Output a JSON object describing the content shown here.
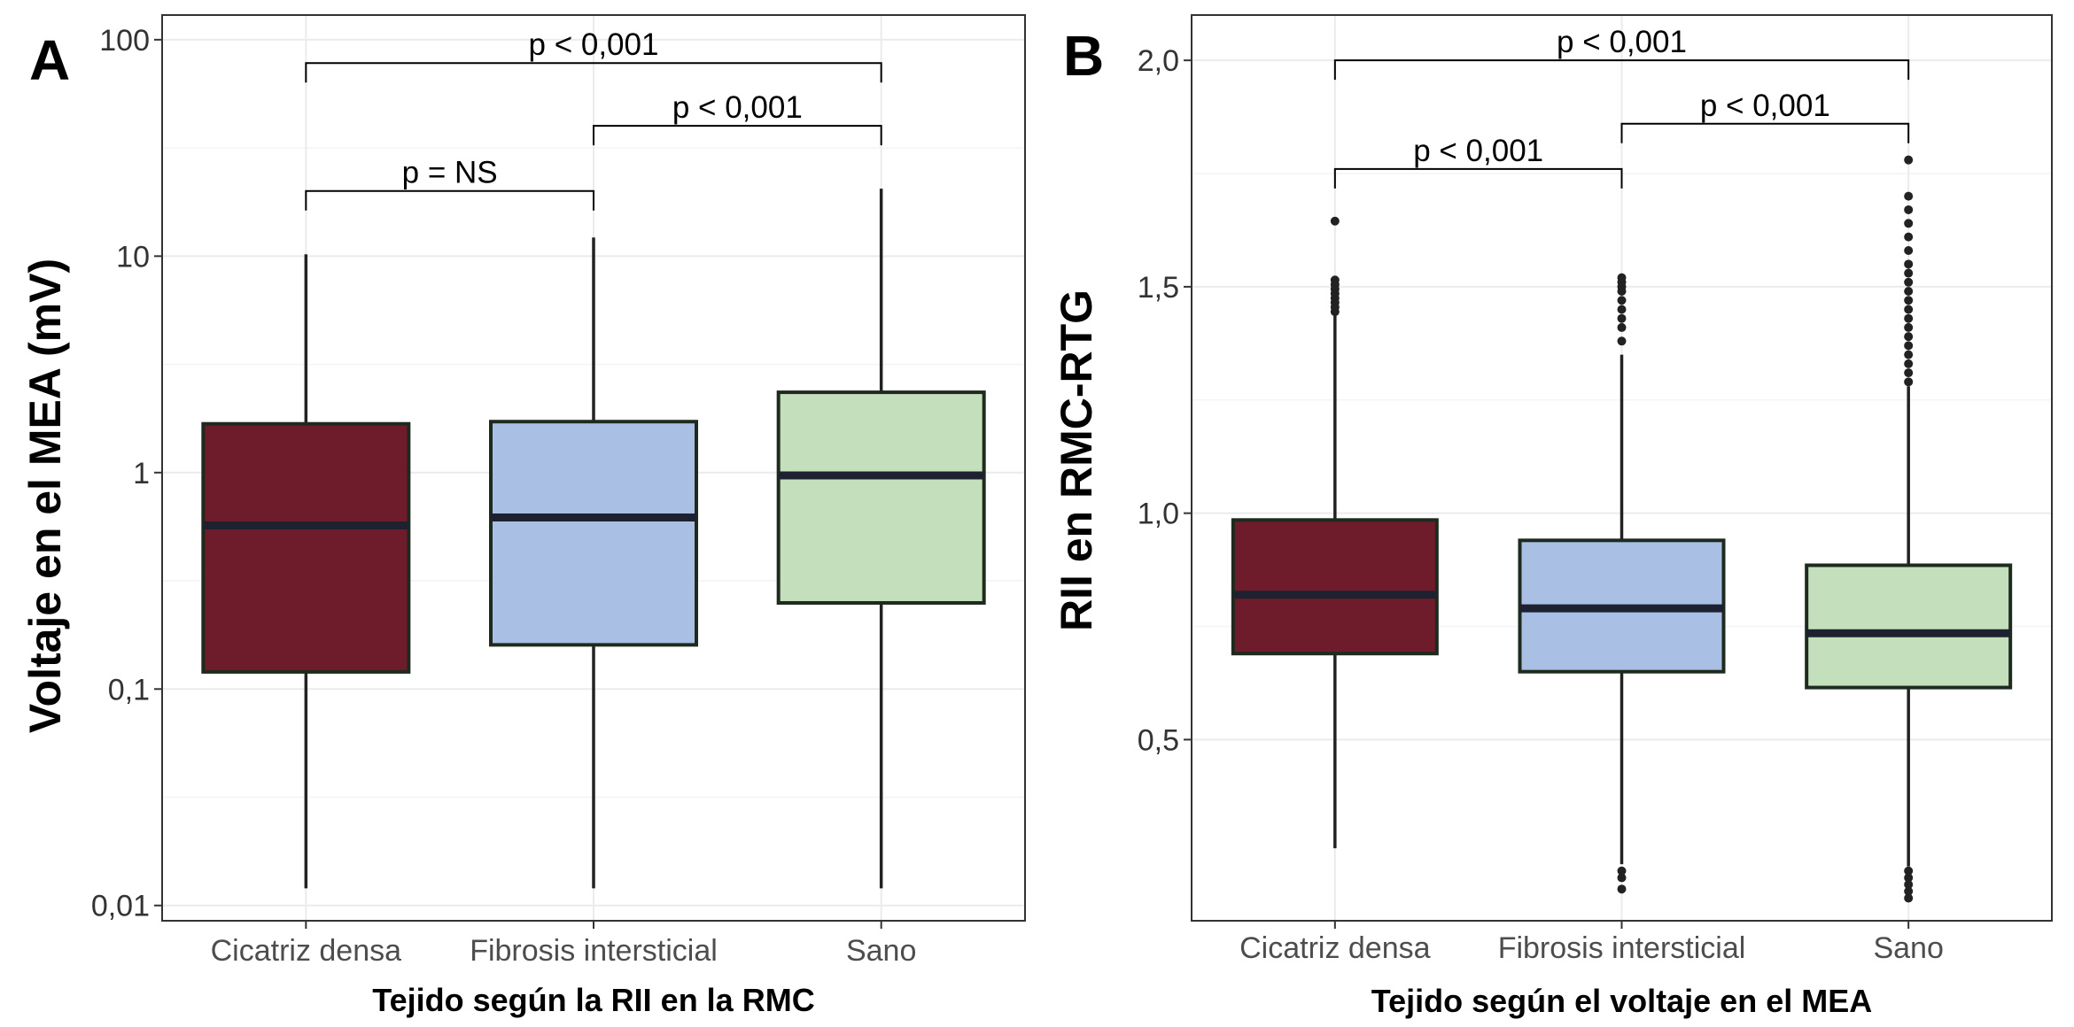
{
  "chart_data": [
    {
      "type": "box",
      "panel_label": "A",
      "title": "",
      "xlabel": "Tejido según la RII en la RMC",
      "ylabel": "Voltaje en el MEA (mV)",
      "y_scale": "log",
      "ylim": [
        0.0085,
        130
      ],
      "y_ticks": [
        0.01,
        0.1,
        1,
        10,
        100
      ],
      "y_tick_labels": [
        "0,01",
        "0,1",
        "1",
        "10",
        "100"
      ],
      "categories": [
        "Cicatriz densa",
        "Fibrosis intersticial",
        "Sano"
      ],
      "boxes": [
        {
          "category": "Cicatriz densa",
          "color": "#6e1c2b",
          "whisker_low": 0.012,
          "q1": 0.12,
          "median": 0.57,
          "q3": 1.68,
          "whisker_high": 10.2,
          "outliers": []
        },
        {
          "category": "Fibrosis intersticial",
          "color": "#aabfe4",
          "whisker_low": 0.012,
          "q1": 0.16,
          "median": 0.62,
          "q3": 1.72,
          "whisker_high": 12.2,
          "outliers": []
        },
        {
          "category": "Sano",
          "color": "#c4dfbb",
          "whisker_low": 0.012,
          "q1": 0.25,
          "median": 0.97,
          "q3": 2.35,
          "whisker_high": 20.5,
          "outliers": []
        }
      ],
      "comparisons": [
        {
          "from": "Cicatriz densa",
          "to": "Fibrosis intersticial",
          "label": "p = NS",
          "y": 20
        },
        {
          "from": "Fibrosis intersticial",
          "to": "Sano",
          "label": "p < 0,001",
          "y": 40
        },
        {
          "from": "Cicatriz densa",
          "to": "Sano",
          "label": "p < 0,001",
          "y": 78
        }
      ],
      "grid": true,
      "legend": "none"
    },
    {
      "type": "box",
      "panel_label": "B",
      "title": "",
      "xlabel": "Tejido según el voltaje en el MEA",
      "ylabel": "RII en RMC-RTG",
      "y_scale": "linear",
      "ylim": [
        0.1,
        2.1
      ],
      "y_ticks": [
        0.5,
        1.0,
        1.5,
        2.0
      ],
      "y_tick_labels": [
        "0,5",
        "1,0",
        "1,5",
        "2,0"
      ],
      "categories": [
        "Cicatriz densa",
        "Fibrosis intersticial",
        "Sano"
      ],
      "boxes": [
        {
          "category": "Cicatriz densa",
          "color": "#6e1c2b",
          "whisker_low": 0.26,
          "q1": 0.69,
          "median": 0.82,
          "q3": 0.985,
          "whisker_high": 1.44,
          "outliers": [
            1.645,
            1.445,
            1.455,
            1.465,
            1.475,
            1.485,
            1.495,
            1.505,
            1.515
          ]
        },
        {
          "category": "Fibrosis intersticial",
          "color": "#aabfe4",
          "whisker_low": 0.225,
          "q1": 0.65,
          "median": 0.79,
          "q3": 0.94,
          "whisker_high": 1.35,
          "outliers": [
            0.17,
            0.195,
            0.21,
            1.38,
            1.41,
            1.43,
            1.45,
            1.47,
            1.49,
            1.5,
            1.51,
            1.52
          ]
        },
        {
          "category": "Sano",
          "color": "#c4dfbb",
          "whisker_low": 0.22,
          "q1": 0.615,
          "median": 0.735,
          "q3": 0.885,
          "whisker_high": 1.28,
          "outliers": [
            0.15,
            0.165,
            0.18,
            0.195,
            0.21,
            1.29,
            1.31,
            1.33,
            1.35,
            1.37,
            1.39,
            1.41,
            1.43,
            1.45,
            1.47,
            1.49,
            1.51,
            1.53,
            1.55,
            1.58,
            1.61,
            1.64,
            1.67,
            1.7,
            1.78
          ]
        }
      ],
      "comparisons": [
        {
          "from": "Cicatriz densa",
          "to": "Fibrosis intersticial",
          "label": "p < 0,001",
          "y": 1.76
        },
        {
          "from": "Fibrosis intersticial",
          "to": "Sano",
          "label": "p < 0,001",
          "y": 1.86
        },
        {
          "from": "Cicatriz densa",
          "to": "Sano",
          "label": "p < 0,001",
          "y": 2.0
        }
      ],
      "grid": true,
      "legend": "none"
    }
  ]
}
